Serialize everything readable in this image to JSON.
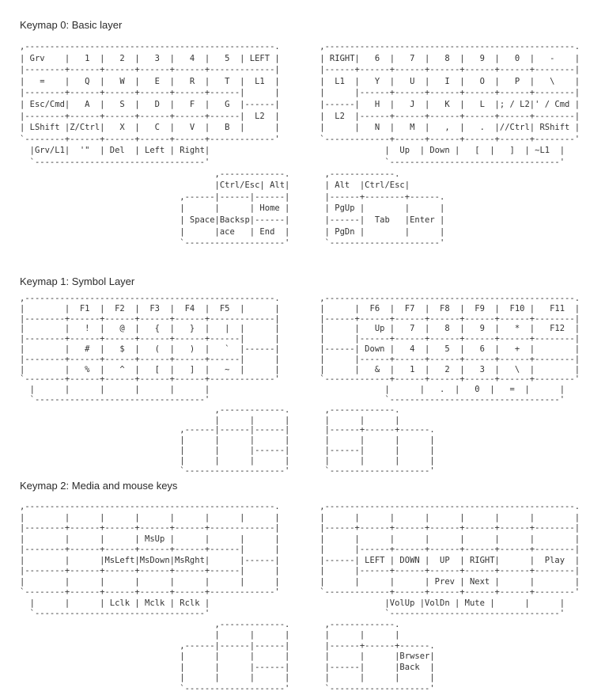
{
  "page": {
    "background_color": "#ffffff",
    "text_color": "#333333"
  },
  "keymaps": [
    {
      "title": "Keymap 0: Basic layer",
      "art": ",--------------------------------------------------.        ,--------------------------------------------------.\n| Grv    |   1  |   2  |   3  |   4  |   5  | LEFT |        | RIGHT|   6  |   7  |   8  |   9  |   0  |   -    |\n|--------+------+------+------+------+-------------|        |------+------+------+------+------+------+--------|\n|   =    |   Q  |   W  |   E  |   R  |   T  |  L1  |        |  L1  |   Y  |   U  |   I  |   O  |   P  |   \\    |\n|--------+------+------+------+------+------|      |        |      |------+------+------+------+------+--------|\n| Esc/Cmd|   A  |   S  |   D  |   F  |   G  |------|        |------|   H  |   J  |   K  |   L  |; / L2|' / Cmd |\n|--------+------+------+------+------+------|  L2  |        |  L2  |------+------+------+------+------+--------|\n| LShift |Z/Ctrl|   X  |   C  |   V  |   B  |      |        |      |   N  |   M  |   ,  |   .  |//Ctrl| RShift |\n`--------+------+------+------+------+-------------'        `-------------+------+------+------+------+--------'\n  |Grv/L1|  '\"  | Del  | Left | Right|                                   |  Up  | Down |   [  |   ]  | ~L1  |\n  `----------------------------------'                                   `----------------------------------'\n                                       ,-------------.       ,-------------.\n                                       |Ctrl/Esc| Alt|       | Alt  |Ctrl/Esc|\n                                ,------|------|------|       |------+--------+------.\n                                |      |      | Home |       | PgUp |        |      |\n                                | Space|Backsp|------|       |------|  Tab   |Enter |\n                                |      |ace   | End  |       | PgDn |        |      |\n                                `--------------------'       `----------------------'"
    },
    {
      "title": "Keymap 1: Symbol Layer",
      "art": ",--------------------------------------------------.        ,--------------------------------------------------.\n|        |  F1  |  F2  |  F3  |  F4  |  F5  |      |        |      |  F6  |  F7  |  F8  |  F9  |  F10 |   F11  |\n|--------+------+------+------+------+-------------|        |------+------+------+------+------+------+--------|\n|        |   !  |   @  |   {  |   }  |   |  |      |        |      |   Up |   7  |   8  |   9  |   *  |   F12  |\n|--------+------+------+------+------+------|      |        |      |------+------+------+------+------+--------|\n|        |   #  |   $  |   (  |   )  |   `  |------|        |------| Down |   4  |   5  |   6  |   +  |        |\n|--------+------+------+------+------+------|      |        |      |------+------+------+------+------+--------|\n|        |   %  |   ^  |   [  |   ]  |   ~  |      |        |      |   &  |   1  |   2  |   3  |   \\  |        |\n`--------+------+------+------+------+-------------'        `-------------+------+------+------+------+--------'\n  |      |      |      |      |      |                                   |      |   .  |   0  |   =  |      |\n  `----------------------------------'                                   `----------------------------------'\n                                       ,-------------.       ,-------------.\n                                       |      |      |       |      |      |\n                                ,------|------|------|       |------+------+------.\n                                |      |      |      |       |      |      |      |\n                                |      |      |------|       |------|      |      |\n                                |      |      |      |       |      |      |      |\n                                `--------------------'       `--------------------'"
    },
    {
      "title": "Keymap 2: Media and mouse keys",
      "art": ",--------------------------------------------------.        ,--------------------------------------------------.\n|        |      |      |      |      |      |      |        |      |      |      |      |      |      |        |\n|--------+------+------+------+------+-------------|        |------+------+------+------+------+------+--------|\n|        |      |      | MsUp |      |      |      |        |      |      |      |      |      |      |        |\n|--------+------+------+------+------+------|      |        |      |------+------+------+------+------+--------|\n|        |      |MsLeft|MsDown|MsRght|      |------|        |------| LEFT | DOWN |  UP  | RIGHT|      |  Play  |\n|--------+------+------+------+------+------|      |        |      |------+------+------+------+------+--------|\n|        |      |      |      |      |      |      |        |      |      |      | Prev | Next |      |        |\n`--------+------+------+------+------+-------------'        `-------------+------+------+------+------+--------'\n  |      |      | Lclk | Mclk | Rclk |                                   |VolUp |VolDn | Mute |      |      |\n  `----------------------------------'                                   `----------------------------------'\n                                       ,-------------.       ,-------------.\n                                       |      |      |       |      |      |\n                                ,------|------|------|       |------+------+------.\n                                |      |      |      |       |      |      |Brwser|\n                                |      |      |------|       |------|      |Back  |\n                                |      |      |      |       |      |      |      |\n                                `--------------------'       `--------------------'"
    }
  ]
}
